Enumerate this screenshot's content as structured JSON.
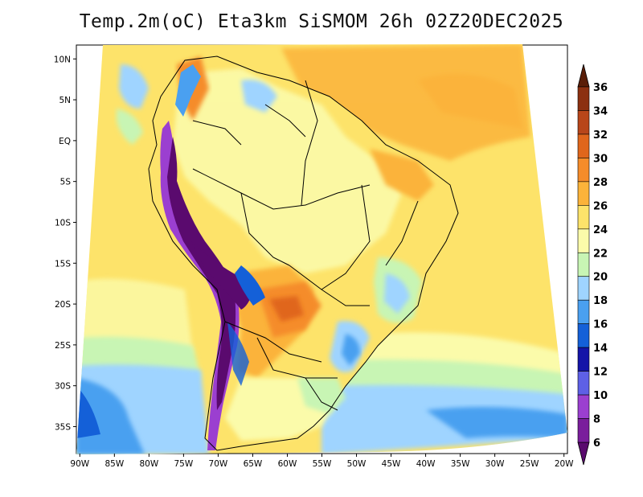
{
  "title": "Temp.2m(oC) Eta3km SiSMOM 26h 02Z20DEC2025",
  "map": {
    "variable": "2 m temperature (°C)",
    "lat_ticks": [
      "10N",
      "5N",
      "EQ",
      "5S",
      "10S",
      "15S",
      "20S",
      "25S",
      "30S",
      "35S"
    ],
    "lat_values": [
      10,
      5,
      0,
      -5,
      -10,
      -15,
      -20,
      -25,
      -30,
      -35
    ],
    "lon_ticks": [
      "90W",
      "85W",
      "80W",
      "75W",
      "70W",
      "65W",
      "60W",
      "55W",
      "50W",
      "45W",
      "40W",
      "35W",
      "30W",
      "25W",
      "20W"
    ],
    "lon_values": [
      -90,
      -85,
      -80,
      -75,
      -70,
      -65,
      -60,
      -55,
      -50,
      -45,
      -40,
      -35,
      -30,
      -25,
      -20
    ],
    "extent": {
      "lon": [
        -90.5,
        -19.5
      ],
      "lat": [
        -38.3,
        11.7
      ]
    }
  },
  "colorbar": {
    "labels": [
      "36",
      "34",
      "32",
      "30",
      "28",
      "26",
      "24",
      "22",
      "20",
      "18",
      "16",
      "14",
      "12",
      "10",
      "8",
      "6"
    ],
    "bins": [
      {
        "range": "<6",
        "color": "#5a0a6e"
      },
      {
        "range": "6-8",
        "color": "#7a1e9c"
      },
      {
        "range": "8-10",
        "color": "#9b3fd0"
      },
      {
        "range": "10-12",
        "color": "#5e60e6"
      },
      {
        "range": "12-14",
        "color": "#1414a8"
      },
      {
        "range": "14-16",
        "color": "#1460d8"
      },
      {
        "range": "16-18",
        "color": "#4aa0f0"
      },
      {
        "range": "18-20",
        "color": "#9fd4ff"
      },
      {
        "range": "20-22",
        "color": "#c8f5b4"
      },
      {
        "range": "22-24",
        "color": "#fbfbaa"
      },
      {
        "range": "24-26",
        "color": "#fde36a"
      },
      {
        "range": "26-28",
        "color": "#fbb33a"
      },
      {
        "range": "28-30",
        "color": "#f58c2a"
      },
      {
        "range": "30-32",
        "color": "#e0661c"
      },
      {
        "range": "32-34",
        "color": "#b8461a"
      },
      {
        "range": "34-36",
        "color": "#8c3010"
      },
      {
        "range": ">36",
        "color": "#5a1e08"
      }
    ]
  }
}
